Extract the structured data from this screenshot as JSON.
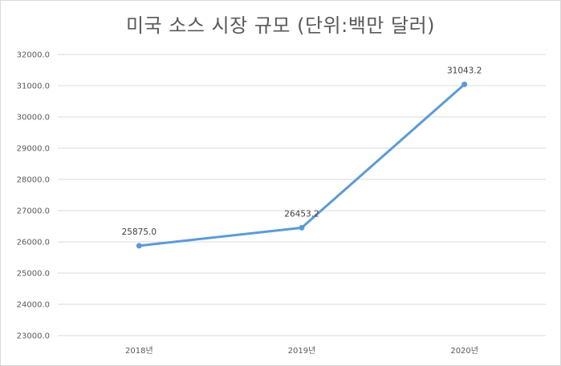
{
  "chart_data": {
    "type": "line",
    "title": "미국 소스 시장 규모 (단위:백만 달러)",
    "categories": [
      "2018년",
      "2019년",
      "2020년"
    ],
    "series": [
      {
        "values": [
          25875.0,
          26453.2,
          31043.2
        ]
      }
    ],
    "data_labels": [
      "25875.0",
      "26453.2",
      "31043.2"
    ],
    "yticks": [
      "23000.0",
      "24000.0",
      "25000.0",
      "26000.0",
      "27000.0",
      "28000.0",
      "29000.0",
      "30000.0",
      "31000.0",
      "32000.0"
    ],
    "ylim": [
      23000,
      32000
    ],
    "grid": true,
    "colors": {
      "line": "#5b9bd5",
      "grid": "#d9d9d9",
      "text": "#595959"
    }
  }
}
